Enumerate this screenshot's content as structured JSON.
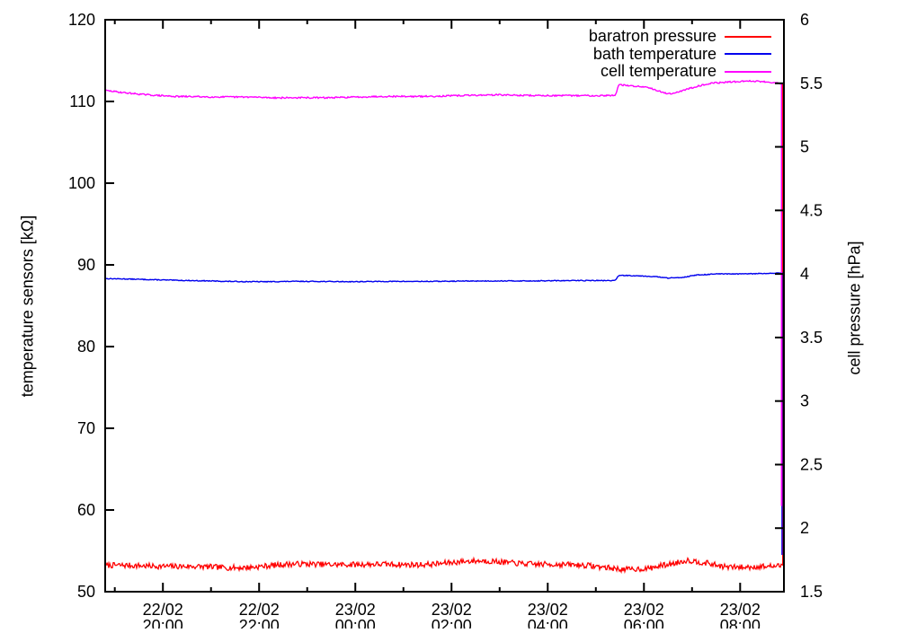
{
  "chart_data": {
    "type": "line",
    "title": "",
    "grid": false,
    "legend_position": "inside-top-right",
    "background_color": "#ffffff",
    "border_color": "#000000",
    "x_axis": {
      "kind": "datetime",
      "hours_span": 14.11,
      "major_ticks": [
        {
          "t": 1.2,
          "date": "22/02",
          "time": "20:00"
        },
        {
          "t": 3.2,
          "date": "22/02",
          "time": "22:00"
        },
        {
          "t": 5.2,
          "date": "23/02",
          "time": "00:00"
        },
        {
          "t": 7.2,
          "date": "23/02",
          "time": "02:00"
        },
        {
          "t": 9.2,
          "date": "23/02",
          "time": "04:00"
        },
        {
          "t": 11.2,
          "date": "23/02",
          "time": "06:00"
        },
        {
          "t": 13.2,
          "date": "23/02",
          "time": "08:00"
        }
      ],
      "minor_ticks_t": [
        0.2,
        2.2,
        4.2,
        6.2,
        8.2,
        10.2,
        12.2
      ]
    },
    "y_left": {
      "label": "temperature sensors [kΩ]",
      "min": 50,
      "max": 120,
      "ticks": [
        {
          "v": 50,
          "label": "50"
        },
        {
          "v": 60,
          "label": "60"
        },
        {
          "v": 70,
          "label": "70"
        },
        {
          "v": 80,
          "label": "80"
        },
        {
          "v": 90,
          "label": "90"
        },
        {
          "v": 100,
          "label": "100"
        },
        {
          "v": 110,
          "label": "110"
        },
        {
          "v": 120,
          "label": "120"
        }
      ]
    },
    "y_right": {
      "label": "cell pressure [hPa]",
      "min": 1.5,
      "max": 6,
      "ticks": [
        {
          "v": 1.5,
          "label": "1.5"
        },
        {
          "v": 2,
          "label": "2"
        },
        {
          "v": 2.5,
          "label": "2.5"
        },
        {
          "v": 3,
          "label": "3"
        },
        {
          "v": 3.5,
          "label": "3.5"
        },
        {
          "v": 4,
          "label": "4"
        },
        {
          "v": 4.5,
          "label": "4.5"
        },
        {
          "v": 5,
          "label": "5"
        },
        {
          "v": 5.5,
          "label": "5.5"
        },
        {
          "v": 6,
          "label": "6"
        }
      ]
    },
    "series": [
      {
        "name": "baratron pressure",
        "color": "#ff0000",
        "axis": "right",
        "noise": 0.022,
        "seed": 7,
        "width": 1.3,
        "points": [
          [
            0,
            1.695
          ],
          [
            1,
            1.7
          ],
          [
            2,
            1.7
          ],
          [
            3,
            1.7
          ],
          [
            4,
            1.705
          ],
          [
            5,
            1.715
          ],
          [
            6,
            1.72
          ],
          [
            7,
            1.725
          ],
          [
            8,
            1.73
          ],
          [
            9,
            1.72
          ],
          [
            10,
            1.715
          ],
          [
            10.4,
            1.7
          ],
          [
            10.8,
            1.675
          ],
          [
            11.3,
            1.67
          ],
          [
            11.8,
            1.71
          ],
          [
            12.1,
            1.745
          ],
          [
            12.5,
            1.73
          ],
          [
            12.9,
            1.7
          ],
          [
            13.3,
            1.695
          ],
          [
            13.7,
            1.705
          ],
          [
            14.07,
            1.71
          ]
        ],
        "end_event": {
          "t": 14.085,
          "to": 5.5,
          "kind": "spike-up"
        }
      },
      {
        "name": "bath temperature",
        "color": "#0000ee",
        "axis": "left",
        "noise": 0.05,
        "seed": 13,
        "width": 1.4,
        "points": [
          [
            0,
            88.3
          ],
          [
            0.8,
            88.2
          ],
          [
            1.6,
            88.1
          ],
          [
            2.5,
            88.0
          ],
          [
            3.5,
            87.95
          ],
          [
            5,
            87.95
          ],
          [
            6.5,
            88.0
          ],
          [
            8,
            88.0
          ],
          [
            9,
            88.05
          ],
          [
            10,
            88.1
          ],
          [
            10.6,
            88.1
          ],
          [
            10.68,
            88.75
          ],
          [
            11.1,
            88.65
          ],
          [
            11.4,
            88.55
          ],
          [
            11.7,
            88.35
          ],
          [
            12.0,
            88.45
          ],
          [
            12.3,
            88.75
          ],
          [
            12.7,
            88.9
          ],
          [
            13.2,
            88.9
          ],
          [
            13.7,
            88.95
          ],
          [
            14.07,
            89.0
          ]
        ],
        "end_event": {
          "t": 14.07,
          "to": 54.5,
          "kind": "drop-down"
        }
      },
      {
        "name": "cell temperature",
        "color": "#ff00ff",
        "axis": "left",
        "noise": 0.09,
        "seed": 29,
        "width": 1.4,
        "points": [
          [
            0,
            111.35
          ],
          [
            0.4,
            111.1
          ],
          [
            0.9,
            110.85
          ],
          [
            1.5,
            110.6
          ],
          [
            2.2,
            110.5
          ],
          [
            3.0,
            110.55
          ],
          [
            3.6,
            110.45
          ],
          [
            4.5,
            110.5
          ],
          [
            5.5,
            110.55
          ],
          [
            6.5,
            110.6
          ],
          [
            7.5,
            110.75
          ],
          [
            8.2,
            110.85
          ],
          [
            8.8,
            110.75
          ],
          [
            9.5,
            110.65
          ],
          [
            10.2,
            110.7
          ],
          [
            10.6,
            110.75
          ],
          [
            10.68,
            112.05
          ],
          [
            11.0,
            111.9
          ],
          [
            11.3,
            111.75
          ],
          [
            11.6,
            111.1
          ],
          [
            11.75,
            110.95
          ],
          [
            12.0,
            111.35
          ],
          [
            12.3,
            111.9
          ],
          [
            12.6,
            112.25
          ],
          [
            13.0,
            112.35
          ],
          [
            13.4,
            112.45
          ],
          [
            13.8,
            112.35
          ],
          [
            14.06,
            112.2
          ]
        ],
        "end_event": {
          "t": 14.06,
          "to": 60.5,
          "kind": "drop-down"
        }
      }
    ]
  }
}
